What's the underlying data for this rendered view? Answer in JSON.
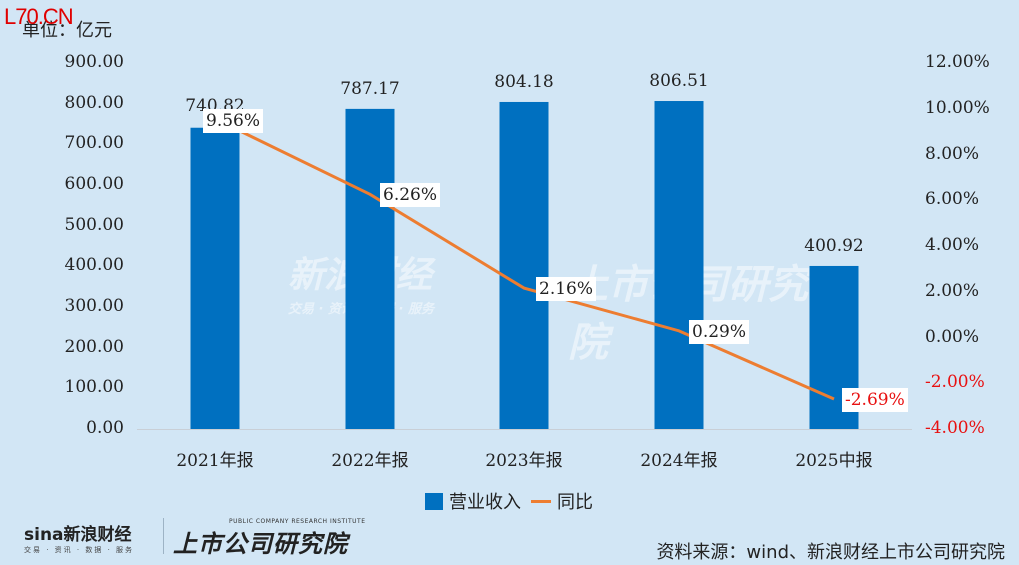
{
  "watermark_top": "L70.CN",
  "unit_label": "单位：亿元",
  "colors": {
    "bar": "#0070c0",
    "line": "#ed7d31",
    "negative": "#e81010",
    "background": "#d2e6f5"
  },
  "left_axis": {
    "ticks": [
      "900.00",
      "800.00",
      "700.00",
      "600.00",
      "500.00",
      "400.00",
      "300.00",
      "200.00",
      "100.00",
      "0.00"
    ]
  },
  "right_axis": {
    "ticks": [
      "12.00%",
      "10.00%",
      "8.00%",
      "6.00%",
      "4.00%",
      "2.00%",
      "0.00%",
      "-2.00%",
      "-4.00%"
    ]
  },
  "categories": [
    "2021年报",
    "2022年报",
    "2023年报",
    "2024年报",
    "2025中报"
  ],
  "bar_labels": [
    "740.82",
    "787.17",
    "804.18",
    "806.51",
    "400.92"
  ],
  "line_labels": [
    "9.56%",
    "6.26%",
    "2.16%",
    "0.29%",
    "-2.69%"
  ],
  "legend": {
    "bar": "营业收入",
    "line": "同比"
  },
  "background_watermark": {
    "sina": "新浪财经",
    "sina_sub": "交易 · 资讯 · 数据 · 服务",
    "institute": "上市公司研究院"
  },
  "footer": {
    "sina_logo": "sina新浪财经",
    "sina_sub": "交易 · 资讯 · 数据 · 服务",
    "institute": "上市公司研究院",
    "institute_en": "PUBLIC COMPANY RESEARCH INSTITUTE",
    "source": "资料来源：wind、新浪财经上市公司研究院"
  },
  "chart_data": {
    "type": "bar+line",
    "title": "",
    "categories": [
      "2021年报",
      "2022年报",
      "2023年报",
      "2024年报",
      "2025中报"
    ],
    "series": [
      {
        "name": "营业收入",
        "type": "bar",
        "axis": "left",
        "values": [
          740.82,
          787.17,
          804.18,
          806.51,
          400.92
        ]
      },
      {
        "name": "同比",
        "type": "line",
        "axis": "right",
        "values": [
          9.56,
          6.26,
          2.16,
          0.29,
          -2.69
        ]
      }
    ],
    "ylabel": "单位：亿元",
    "ylim": [
      0,
      900
    ],
    "y2lim": [
      -4,
      12
    ],
    "y2_format": "percent",
    "grid": false,
    "legend_position": "bottom"
  }
}
